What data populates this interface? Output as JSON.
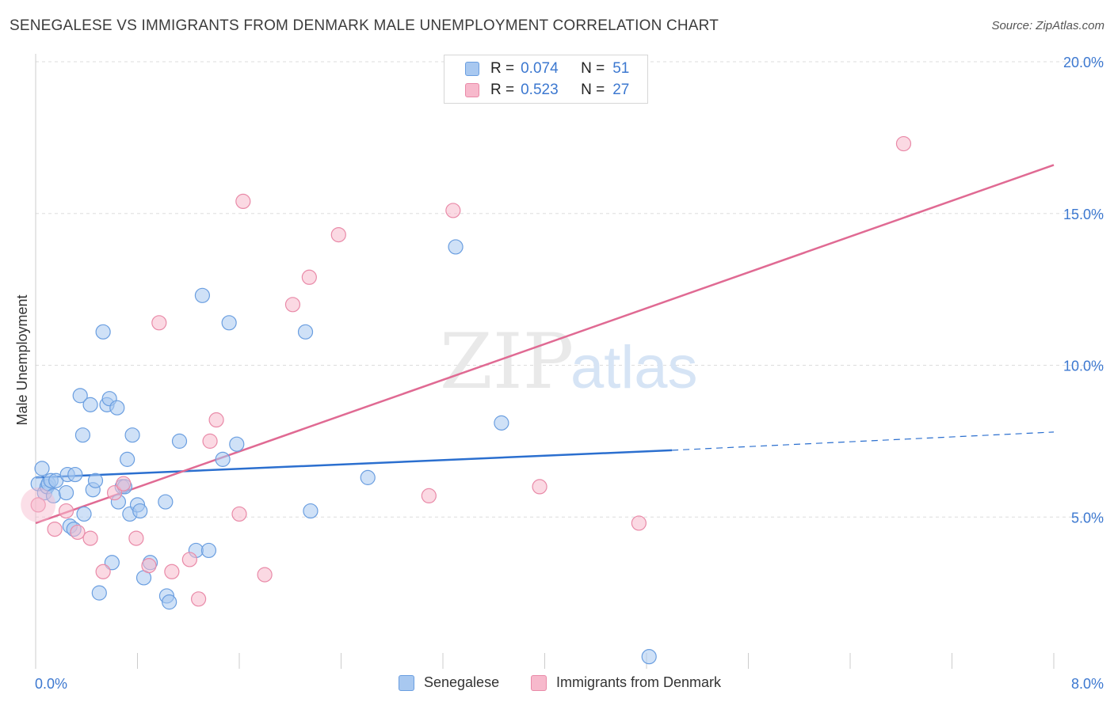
{
  "title": "SENEGALESE VS IMMIGRANTS FROM DENMARK MALE UNEMPLOYMENT CORRELATION CHART",
  "source": "Source: ZipAtlas.com",
  "watermark": {
    "zip": "ZIP",
    "atlas": "atlas"
  },
  "legend": {
    "rows": [
      {
        "r_label": "R =",
        "r_value": "0.074",
        "n_label": "N =",
        "n_value": "51"
      },
      {
        "r_label": "R =",
        "r_value": "0.523",
        "n_label": "N =",
        "n_value": "27"
      }
    ]
  },
  "bottom_legend": [
    "Senegalese",
    "Immigrants from Denmark"
  ],
  "chart_data": {
    "type": "scatter",
    "title": "SENEGALESE VS IMMIGRANTS FROM DENMARK MALE UNEMPLOYMENT CORRELATION CHART",
    "xlabel": "",
    "ylabel": "Male Unemployment",
    "xlim": [
      0,
      8
    ],
    "ylim": [
      0,
      20
    ],
    "x_tick_labels": [
      "0.0%",
      "8.0%"
    ],
    "y_ticks": [
      5,
      10,
      15,
      20
    ],
    "y_tick_labels": [
      "5.0%",
      "10.0%",
      "15.0%",
      "20.0%"
    ],
    "grid": true,
    "legend_position": "top-center",
    "colors": {
      "senegalese_fill": "#a8c8f0",
      "senegalese_stroke": "#6a9ee0",
      "senegalese_line": "#2b6fcf",
      "denmark_fill": "#f7b9cc",
      "denmark_stroke": "#e98aa8",
      "denmark_line": "#e06a93",
      "tick_label": "#3c78d0",
      "grid": "#dddddd"
    },
    "series": [
      {
        "name": "Senegalese",
        "r": 0.074,
        "n": 51,
        "trend": {
          "x": [
            0,
            5.0
          ],
          "y": [
            6.3,
            7.2
          ],
          "dashed_to": [
            8.0,
            7.8
          ]
        },
        "points": [
          [
            0.02,
            6.1
          ],
          [
            0.05,
            6.6
          ],
          [
            0.07,
            5.8
          ],
          [
            0.09,
            6.0
          ],
          [
            0.1,
            6.1
          ],
          [
            0.12,
            6.2
          ],
          [
            0.14,
            5.7
          ],
          [
            0.16,
            6.2
          ],
          [
            0.24,
            5.8
          ],
          [
            0.25,
            6.4
          ],
          [
            0.27,
            4.7
          ],
          [
            0.3,
            4.6
          ],
          [
            0.31,
            6.4
          ],
          [
            0.35,
            9.0
          ],
          [
            0.37,
            7.7
          ],
          [
            0.38,
            5.1
          ],
          [
            0.43,
            8.7
          ],
          [
            0.45,
            5.9
          ],
          [
            0.47,
            6.2
          ],
          [
            0.5,
            2.5
          ],
          [
            0.53,
            11.1
          ],
          [
            0.56,
            8.7
          ],
          [
            0.58,
            8.9
          ],
          [
            0.6,
            3.5
          ],
          [
            0.64,
            8.6
          ],
          [
            0.65,
            5.5
          ],
          [
            0.68,
            6.0
          ],
          [
            0.7,
            6.0
          ],
          [
            0.72,
            6.9
          ],
          [
            0.74,
            5.1
          ],
          [
            0.76,
            7.7
          ],
          [
            0.8,
            5.4
          ],
          [
            0.82,
            5.2
          ],
          [
            0.85,
            3.0
          ],
          [
            0.9,
            3.5
          ],
          [
            1.03,
            2.4
          ],
          [
            1.02,
            5.5
          ],
          [
            1.13,
            7.5
          ],
          [
            1.26,
            3.9
          ],
          [
            1.31,
            12.3
          ],
          [
            1.36,
            3.9
          ],
          [
            1.47,
            6.9
          ],
          [
            1.52,
            11.4
          ],
          [
            1.58,
            7.4
          ],
          [
            2.12,
            11.1
          ],
          [
            2.16,
            5.2
          ],
          [
            2.61,
            6.3
          ],
          [
            3.3,
            13.9
          ],
          [
            3.66,
            8.1
          ],
          [
            4.82,
            0.4
          ],
          [
            1.05,
            2.2
          ]
        ]
      },
      {
        "name": "Immigrants from Denmark",
        "r": 0.523,
        "n": 27,
        "trend": {
          "x": [
            0,
            8.0
          ],
          "y": [
            4.8,
            16.6
          ]
        },
        "points": [
          [
            0.02,
            5.4
          ],
          [
            0.15,
            4.6
          ],
          [
            0.24,
            5.2
          ],
          [
            0.33,
            4.5
          ],
          [
            0.43,
            4.3
          ],
          [
            0.53,
            3.2
          ],
          [
            0.62,
            5.8
          ],
          [
            0.69,
            6.1
          ],
          [
            0.79,
            4.3
          ],
          [
            0.89,
            3.4
          ],
          [
            0.97,
            11.4
          ],
          [
            1.07,
            3.2
          ],
          [
            1.21,
            3.6
          ],
          [
            1.28,
            2.3
          ],
          [
            1.37,
            7.5
          ],
          [
            1.42,
            8.2
          ],
          [
            1.6,
            5.1
          ],
          [
            1.63,
            15.4
          ],
          [
            1.8,
            3.1
          ],
          [
            2.02,
            12.0
          ],
          [
            2.15,
            12.9
          ],
          [
            2.38,
            14.3
          ],
          [
            3.09,
            5.7
          ],
          [
            3.28,
            15.1
          ],
          [
            3.96,
            6.0
          ],
          [
            4.74,
            4.8
          ],
          [
            6.82,
            17.3
          ]
        ]
      }
    ]
  }
}
